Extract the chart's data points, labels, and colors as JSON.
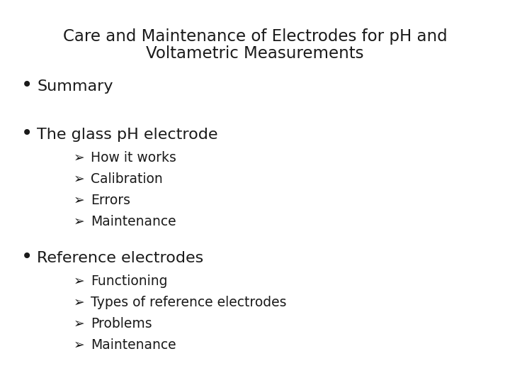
{
  "title_line1": "Care and Maintenance of Electrodes for pH and",
  "title_line2": "Voltametric Measurements",
  "title_fontsize": 16.5,
  "title_color": "#1a1a1a",
  "background_color": "#ffffff",
  "bullet_color": "#1a1a1a",
  "bullet_fontsize": 16,
  "sub_fontsize": 13.5,
  "bullets": [
    {
      "text": "Summary",
      "subitems": []
    },
    {
      "text": "The glass pH electrode",
      "subitems": [
        "How it works",
        "Calibration",
        "Errors",
        "Maintenance"
      ]
    },
    {
      "text": "Reference electrodes",
      "subitems": [
        "Functioning",
        "Types of reference electrodes",
        "Problems",
        "Maintenance"
      ]
    }
  ]
}
